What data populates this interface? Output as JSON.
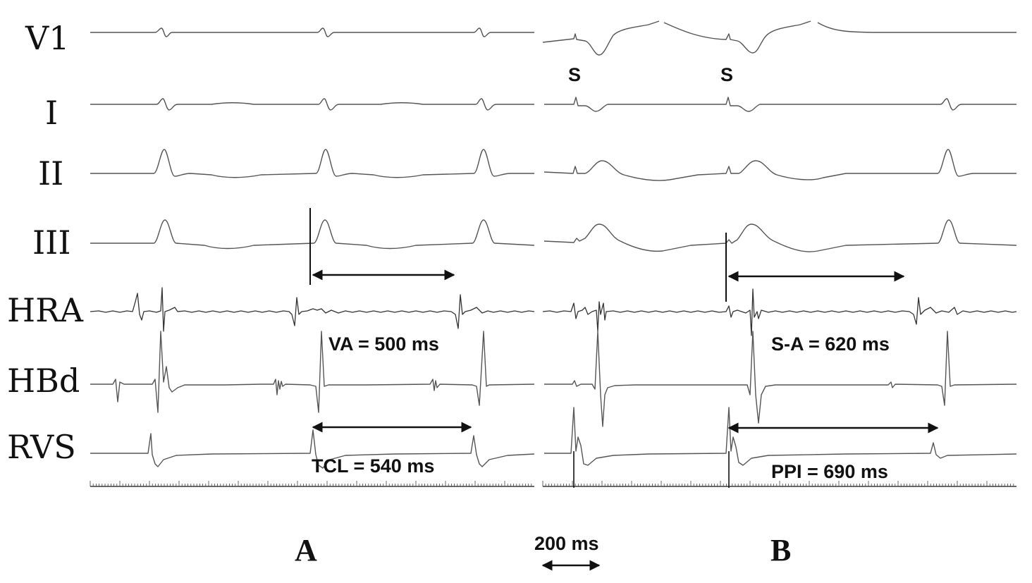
{
  "leads": [
    {
      "id": "v1",
      "label": "V1"
    },
    {
      "id": "i",
      "label": "I"
    },
    {
      "id": "ii",
      "label": "II"
    },
    {
      "id": "iii",
      "label": "III"
    },
    {
      "id": "hra",
      "label": "HRA"
    },
    {
      "id": "hbd",
      "label": "HBd"
    },
    {
      "id": "rvs",
      "label": "RVS"
    }
  ],
  "panels": {
    "a": {
      "label": "A"
    },
    "b": {
      "label": "B"
    }
  },
  "stimulus_marks": [
    "S",
    "S"
  ],
  "measurements": {
    "va": "VA = 500 ms",
    "tcl": "TCL = 540 ms",
    "sa": "S-A = 620 ms",
    "ppi": "PPI = 690 ms"
  },
  "scale_bar": {
    "label": "200 ms"
  }
}
